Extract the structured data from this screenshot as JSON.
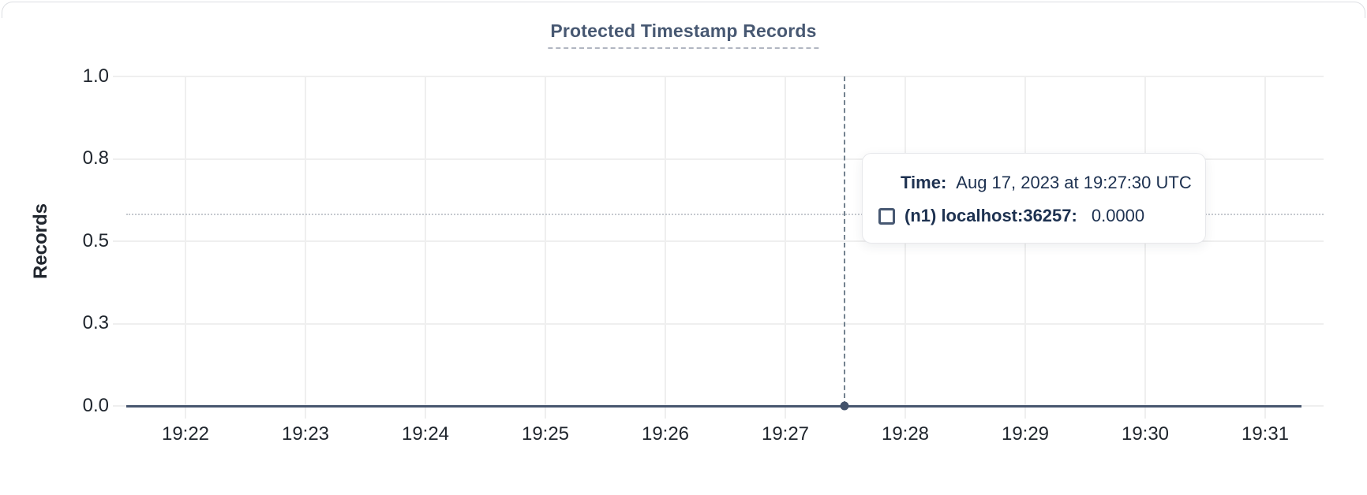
{
  "chart": {
    "title": "Protected Timestamp Records",
    "ylabel": "Records"
  },
  "chart_data": {
    "type": "line",
    "title": "Protected Timestamp Records",
    "xlabel": "",
    "ylabel": "Records",
    "x_tick_labels": [
      "19:22",
      "19:23",
      "19:24",
      "19:25",
      "19:26",
      "19:27",
      "19:28",
      "19:29",
      "19:30",
      "19:31"
    ],
    "y_tick_labels": [
      "1.0",
      "0.8",
      "0.5",
      "0.3",
      "0.0"
    ],
    "ylim": [
      0.0,
      1.0
    ],
    "grid": true,
    "legend_position": "hover-tooltip",
    "series": [
      {
        "name": "(n1) localhost:36257",
        "color": "#47566f",
        "x": [
          "19:22",
          "19:23",
          "19:24",
          "19:25",
          "19:26",
          "19:27",
          "19:27:30",
          "19:28",
          "19:29",
          "19:30",
          "19:31"
        ],
        "values": [
          0,
          0,
          0,
          0,
          0,
          0,
          0,
          0,
          0,
          0,
          0
        ]
      }
    ],
    "hovered_point": {
      "time": "Aug 17, 2023 at 19:27:30 UTC",
      "series": "(n1) localhost:36257",
      "value": 0.0
    }
  },
  "tooltip": {
    "time_label": "Time:",
    "time_value": "Aug 17, 2023 at 19:27:30 UTC",
    "series_label": "(n1) localhost:36257:",
    "series_value": "0.0000"
  },
  "colors": {
    "title": "#475872",
    "series_line": "#47566f",
    "grid": "#efefef",
    "crosshair_vertical": "#73828f",
    "crosshair_horizontal": "#c5c8cf",
    "tooltip_text": "#1d3150",
    "card_border": "#dcdee2"
  }
}
